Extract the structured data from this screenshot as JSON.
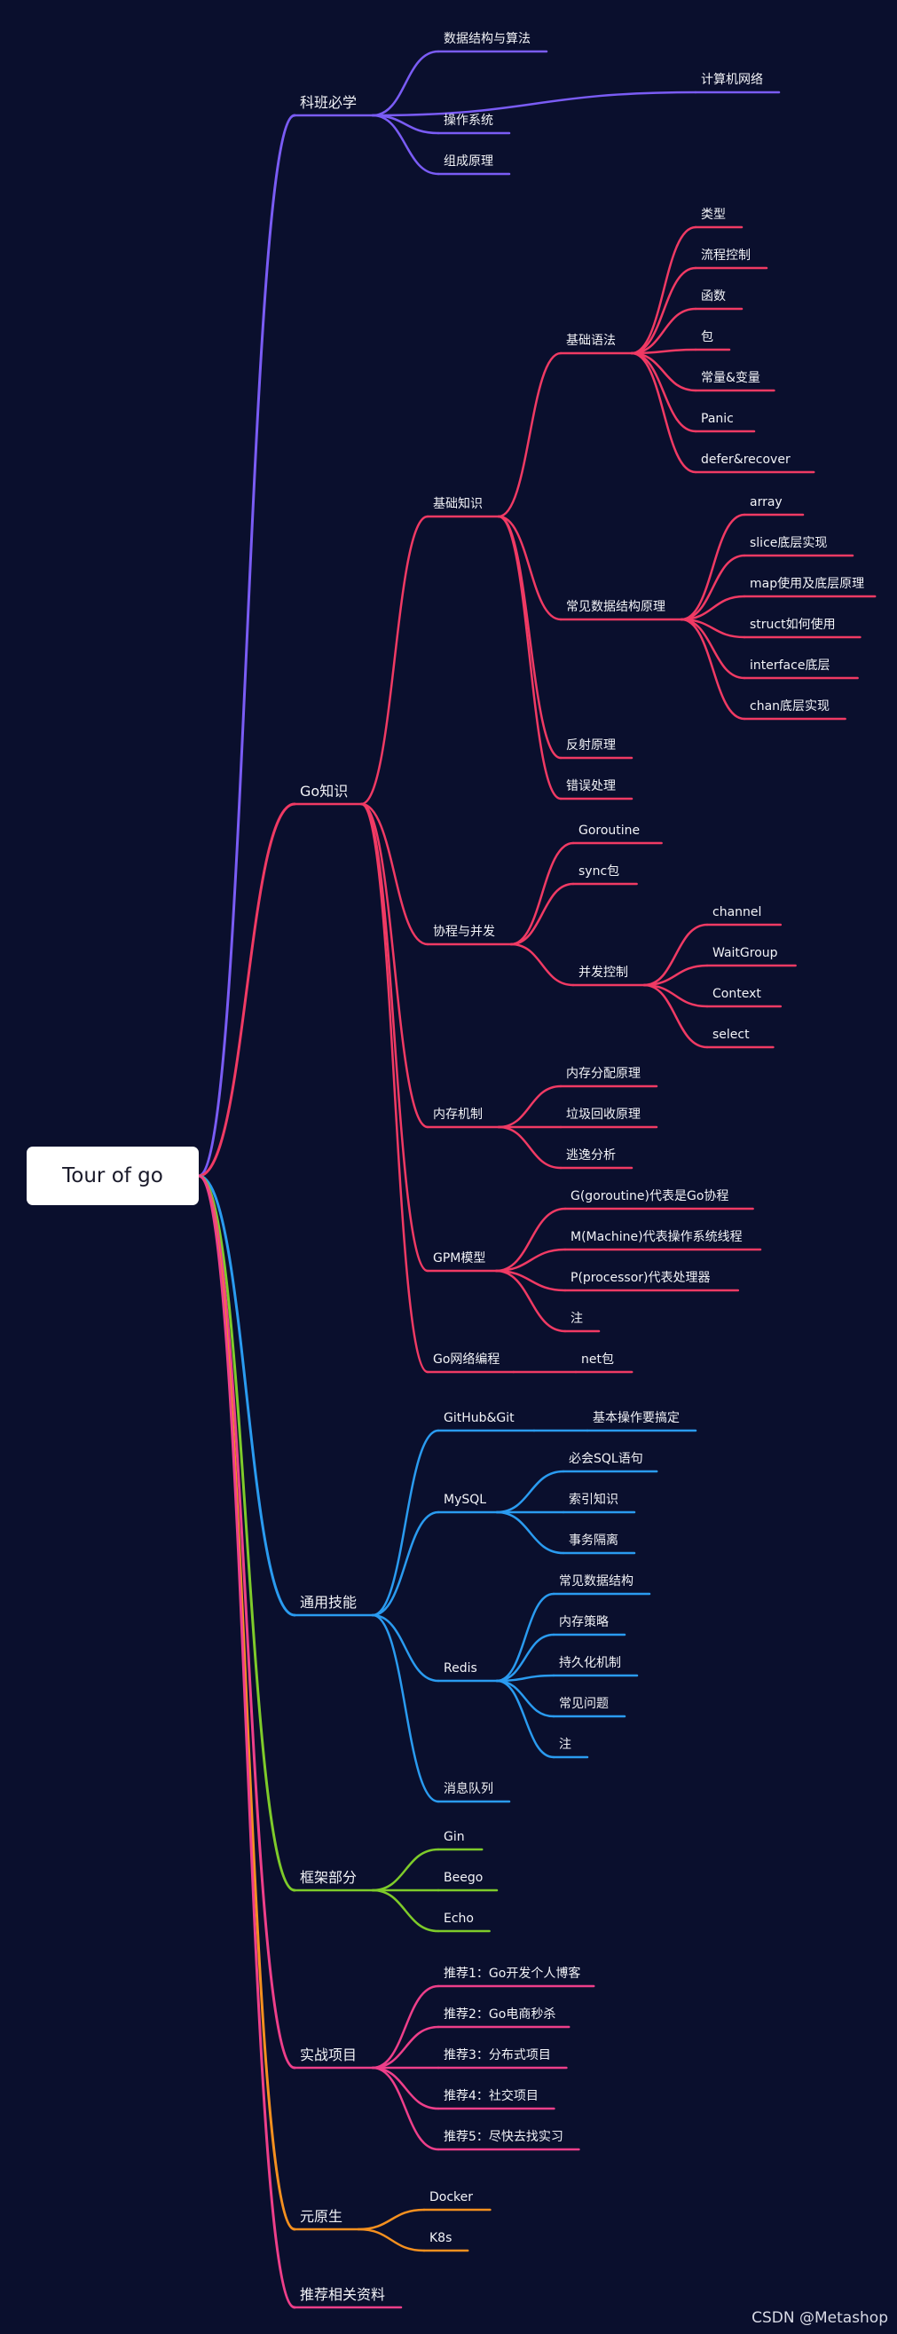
{
  "root": {
    "label": "Tour of go"
  },
  "watermark": "CSDN @Metashop",
  "colors": {
    "purple": "#7a5cf5",
    "red": "#f03a64",
    "blue": "#2a9bf0",
    "green": "#7ecb2a",
    "pink": "#ee3f8a",
    "orange": "#f5901f",
    "background": "#0a0f2d"
  },
  "branches": [
    {
      "label": "科班必学",
      "color": "purple",
      "children": [
        {
          "label": "数据结构与算法"
        },
        {
          "label": "计算机网络"
        },
        {
          "label": "操作系统"
        },
        {
          "label": "组成原理"
        }
      ]
    },
    {
      "label": "Go知识",
      "color": "red",
      "children": [
        {
          "label": "基础知识",
          "children": [
            {
              "label": "基础语法",
              "children": [
                {
                  "label": "类型"
                },
                {
                  "label": "流程控制"
                },
                {
                  "label": "函数"
                },
                {
                  "label": "包"
                },
                {
                  "label": "常量&变量"
                },
                {
                  "label": "Panic"
                },
                {
                  "label": "defer&recover"
                }
              ]
            },
            {
              "label": "常见数据结构原理",
              "children": [
                {
                  "label": "array"
                },
                {
                  "label": "slice底层实现"
                },
                {
                  "label": "map使用及底层原理"
                },
                {
                  "label": "struct如何使用"
                },
                {
                  "label": "interface底层"
                },
                {
                  "label": "chan底层实现"
                }
              ]
            },
            {
              "label": "反射原理"
            },
            {
              "label": "错误处理"
            }
          ]
        },
        {
          "label": "协程与并发",
          "children": [
            {
              "label": "Goroutine"
            },
            {
              "label": "sync包"
            },
            {
              "label": "并发控制",
              "children": [
                {
                  "label": "channel"
                },
                {
                  "label": "WaitGroup"
                },
                {
                  "label": "Context"
                },
                {
                  "label": "select"
                }
              ]
            }
          ]
        },
        {
          "label": "内存机制",
          "children": [
            {
              "label": "内存分配原理"
            },
            {
              "label": "垃圾回收原理"
            },
            {
              "label": "逃逸分析"
            }
          ]
        },
        {
          "label": "GPM模型",
          "children": [
            {
              "label": "G(goroutine)代表是Go协程"
            },
            {
              "label": "M(Machine)代表操作系统线程"
            },
            {
              "label": "P(processor)代表处理器"
            },
            {
              "label": "注"
            }
          ]
        },
        {
          "label": "Go网络编程",
          "children": [
            {
              "label": "net包"
            }
          ]
        }
      ]
    },
    {
      "label": "通用技能",
      "color": "blue",
      "children": [
        {
          "label": "GitHub&Git",
          "children": [
            {
              "label": "基本操作要搞定"
            }
          ]
        },
        {
          "label": "MySQL",
          "children": [
            {
              "label": "必会SQL语句"
            },
            {
              "label": "索引知识"
            },
            {
              "label": "事务隔离"
            }
          ]
        },
        {
          "label": "Redis",
          "children": [
            {
              "label": "常见数据结构"
            },
            {
              "label": "内存策略"
            },
            {
              "label": "持久化机制"
            },
            {
              "label": "常见问题"
            },
            {
              "label": "注"
            }
          ]
        },
        {
          "label": "消息队列"
        }
      ]
    },
    {
      "label": "框架部分",
      "color": "green",
      "children": [
        {
          "label": "Gin"
        },
        {
          "label": "Beego"
        },
        {
          "label": "Echo"
        }
      ]
    },
    {
      "label": "实战项目",
      "color": "pink",
      "children": [
        {
          "label": "推荐1：Go开发个人博客"
        },
        {
          "label": "推荐2：Go电商秒杀"
        },
        {
          "label": "推荐3：分布式项目"
        },
        {
          "label": "推荐4：社交项目"
        },
        {
          "label": "推荐5：尽快去找实习"
        }
      ]
    },
    {
      "label": "元原生",
      "color": "orange",
      "children": [
        {
          "label": "Docker"
        },
        {
          "label": "K8s"
        }
      ]
    },
    {
      "label": "推荐相关资料",
      "color": "pink"
    }
  ]
}
